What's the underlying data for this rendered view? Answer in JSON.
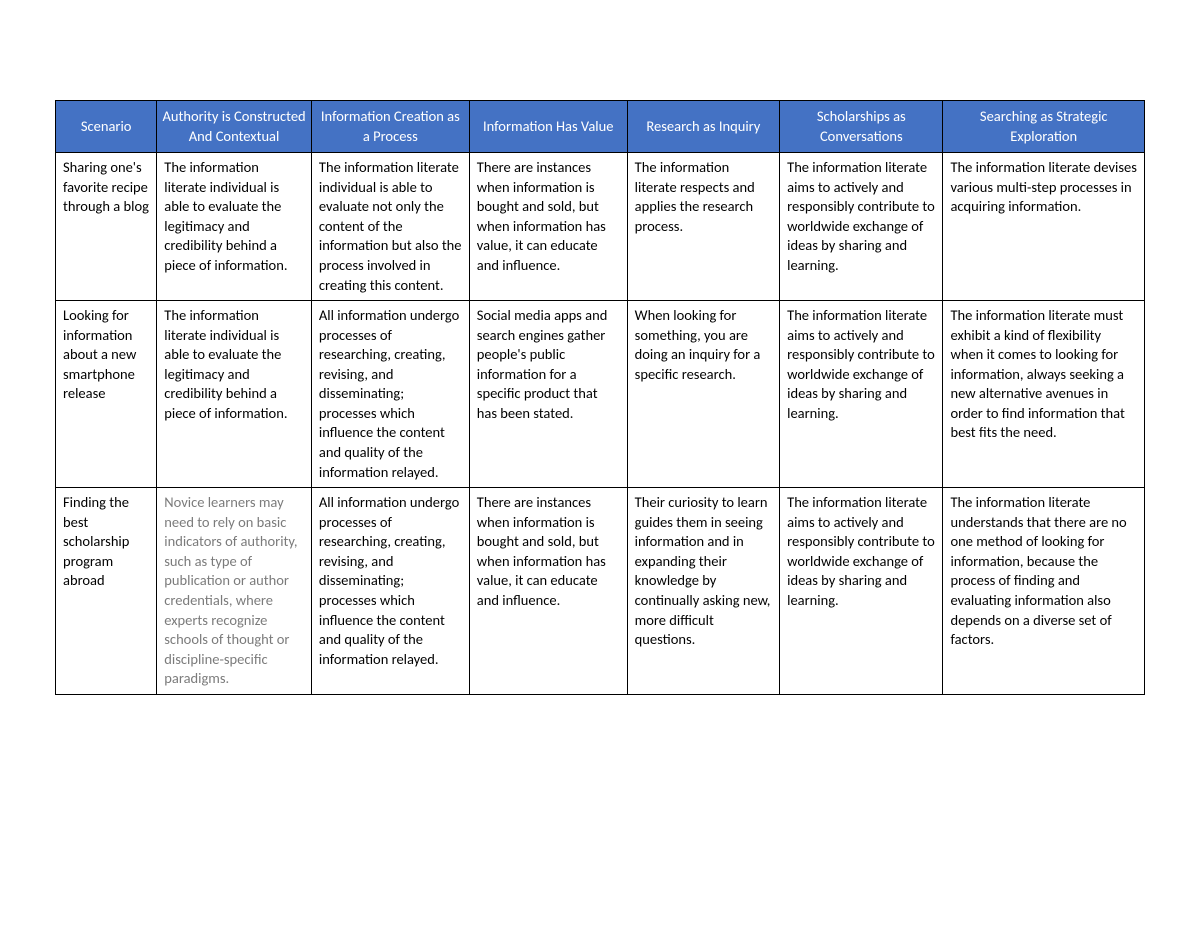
{
  "table": {
    "header_bg": "#4472c4",
    "header_text_color": "#ffffff",
    "border_color": "#000000",
    "body_text_color": "#000000",
    "muted_text_color": "#7b7b7b",
    "font_family": "Calibri",
    "font_size": 14.5,
    "columns": [
      {
        "label": "Scenario",
        "width": "9.3%"
      },
      {
        "label": "Authority is Constructed And Contextual",
        "width": "14.2%"
      },
      {
        "label": "Information Creation as a Process",
        "width": "14.5%"
      },
      {
        "label": "Information Has Value",
        "width": "14.5%"
      },
      {
        "label": "Research as Inquiry",
        "width": "14.0%"
      },
      {
        "label": "Scholarships as Conversations",
        "width": "15.0%"
      },
      {
        "label": "Searching as Strategic Exploration",
        "width": "18.5%"
      }
    ],
    "rows": [
      {
        "scenario": "Sharing one's favorite recipe through a blog",
        "cells": [
          {
            "text": "The information literate individual is able to evaluate the legitimacy and credibility behind a piece of information.",
            "muted": false
          },
          {
            "text": "The information literate individual is able to evaluate not only the content of the information but also the process involved in creating this content.",
            "muted": false
          },
          {
            "text": "There are instances when information is bought and sold, but when information has value, it can educate and influence.",
            "muted": false
          },
          {
            "text": "The information literate respects and applies the research process.",
            "muted": false
          },
          {
            "text": "The information literate aims to actively and responsibly contribute to worldwide exchange of ideas by sharing and learning.",
            "muted": false
          },
          {
            "text": "The information literate devises various multi-step processes in acquiring information.",
            "muted": false
          }
        ]
      },
      {
        "scenario": "Looking for information about a new smartphone release",
        "cells": [
          {
            "text": "The information literate individual is able to evaluate the legitimacy and credibility behind a piece of information.",
            "muted": false
          },
          {
            "text": "All information undergo processes of researching, creating, revising, and disseminating; processes which influence the content and quality of the information relayed.",
            "muted": false
          },
          {
            "text": "Social media apps and search engines gather people's public information for a specific product that has been stated.",
            "muted": false
          },
          {
            "text": "When looking for something, you are doing an inquiry for a specific research.",
            "muted": false
          },
          {
            "text": "The information literate aims to actively and responsibly contribute to worldwide exchange of ideas by sharing and learning.",
            "muted": false
          },
          {
            "text": "The information literate must exhibit a kind of flexibility when it comes to looking for information, always seeking a new alternative avenues in order to find information that best fits the need.",
            "muted": false
          }
        ]
      },
      {
        "scenario": "Finding the best scholarship program abroad",
        "cells": [
          {
            "text": "Novice learners may need to rely on basic indicators of authority, such as type of publication or author credentials, where experts recognize schools of thought or discipline-specific paradigms.",
            "muted": true
          },
          {
            "text": "All information undergo processes of researching, creating, revising, and disseminating; processes which influence the content and quality of the information relayed.",
            "muted": false
          },
          {
            "text": "There are instances when information is bought and sold, but when information has value, it can educate and influence.",
            "muted": false
          },
          {
            "text": "Their curiosity to learn guides them in seeing information and in expanding their knowledge by continually asking new, more difficult questions.",
            "muted": false
          },
          {
            "text": "The information literate aims to actively and responsibly contribute to worldwide exchange of ideas by sharing and learning.",
            "muted": false
          },
          {
            "text": "The information literate understands that there are no one method of looking for information, because the process of finding and evaluating information also depends on a diverse set of factors.",
            "muted": false
          }
        ]
      }
    ]
  }
}
